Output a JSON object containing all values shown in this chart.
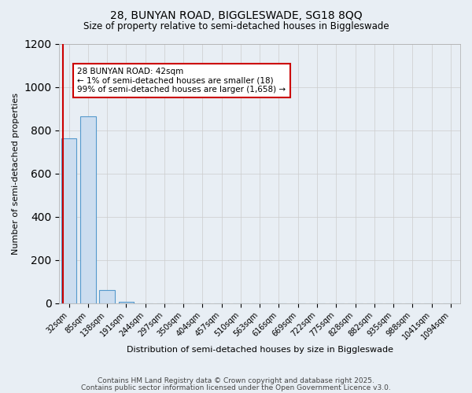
{
  "title1": "28, BUNYAN ROAD, BIGGLESWADE, SG18 8QQ",
  "title2": "Size of property relative to semi-detached houses in Biggleswade",
  "xlabel": "Distribution of semi-detached houses by size in Biggleswade",
  "ylabel": "Number of semi-detached properties",
  "bar_labels": [
    "32sqm",
    "85sqm",
    "138sqm",
    "191sqm",
    "244sqm",
    "297sqm",
    "350sqm",
    "404sqm",
    "457sqm",
    "510sqm",
    "563sqm",
    "616sqm",
    "669sqm",
    "722sqm",
    "775sqm",
    "828sqm",
    "882sqm",
    "935sqm",
    "988sqm",
    "1041sqm",
    "1094sqm"
  ],
  "bar_values": [
    762,
    862,
    60,
    5,
    0,
    0,
    0,
    0,
    0,
    0,
    0,
    0,
    0,
    0,
    0,
    0,
    0,
    0,
    0,
    0,
    0
  ],
  "bar_color": "#ccddef",
  "bar_edge_color": "#5599cc",
  "ylim": [
    0,
    1200
  ],
  "yticks": [
    0,
    200,
    400,
    600,
    800,
    1000,
    1200
  ],
  "annotation_text": "28 BUNYAN ROAD: 42sqm\n← 1% of semi-detached houses are smaller (18)\n99% of semi-detached houses are larger (1,658) →",
  "vline_color": "#cc0000",
  "footer1": "Contains HM Land Registry data © Crown copyright and database right 2025.",
  "footer2": "Contains public sector information licensed under the Open Government Licence v3.0.",
  "background_color": "#e8eef4",
  "plot_bg_color": "#e8eef4",
  "grid_color": "#cccccc"
}
